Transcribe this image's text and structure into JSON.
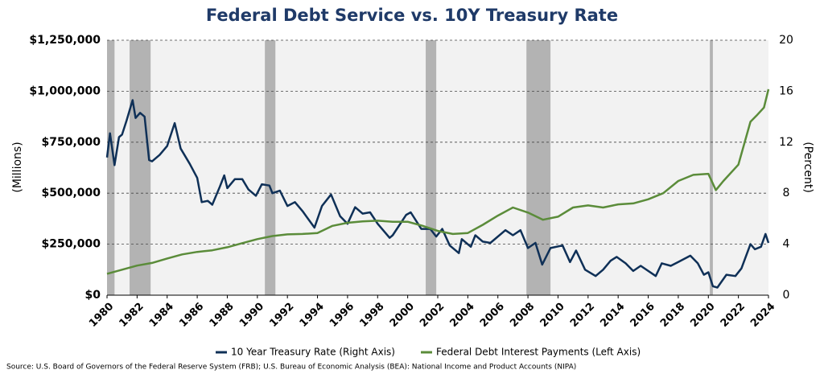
{
  "chart_data": {
    "type": "line",
    "title": "Federal Debt Service vs. 10Y Treasury Rate",
    "y_label": "(Millions)",
    "y2_label": "(Percent)",
    "source": "Source: U.S. Board of Governors of the Federal Reserve System (FRB); U.S. Bureau of Economic Analysis (BEA): National Income and Product Accounts (NIPA)",
    "xlim": [
      1980,
      2024
    ],
    "xticks": [
      1980,
      1982,
      1984,
      1986,
      1988,
      1990,
      1992,
      1994,
      1996,
      1998,
      2000,
      2002,
      2004,
      2006,
      2008,
      2010,
      2012,
      2014,
      2016,
      2018,
      2020,
      2022,
      2024
    ],
    "ylim": [
      0,
      1250000
    ],
    "yticks": [
      {
        "value": 0,
        "label": "$0"
      },
      {
        "value": 250000,
        "label": "$250,000"
      },
      {
        "value": 500000,
        "label": "$500,000"
      },
      {
        "value": 750000,
        "label": "$750,000"
      },
      {
        "value": 1000000,
        "label": "$1,000,000"
      },
      {
        "value": 1250000,
        "label": "$1,250,000"
      }
    ],
    "y2lim": [
      0,
      20
    ],
    "y2ticks": [
      0,
      4,
      8,
      12,
      16,
      20
    ],
    "grid": true,
    "legend": "bottom",
    "recessions": [
      [
        1980.0,
        1980.5
      ],
      [
        1981.5,
        1982.9
      ],
      [
        1990.5,
        1991.2
      ],
      [
        2001.2,
        2001.9
      ],
      [
        2007.9,
        2009.5
      ],
      [
        2020.1,
        2020.3
      ]
    ],
    "recession_color": "#b3b3b3",
    "series": [
      {
        "name": "10 Year Treasury Rate (Right Axis)",
        "color": "#0f3057",
        "axis": "y2",
        "x": [
          1980.0,
          1980.2,
          1980.5,
          1980.8,
          1981.0,
          1981.3,
          1981.7,
          1981.9,
          1982.2,
          1982.5,
          1982.8,
          1983.0,
          1983.5,
          1984.0,
          1984.5,
          1984.9,
          1985.5,
          1986.0,
          1986.3,
          1986.7,
          1987.0,
          1987.5,
          1987.8,
          1988.0,
          1988.5,
          1989.0,
          1989.4,
          1989.9,
          1990.3,
          1990.8,
          1991.0,
          1991.5,
          1992.0,
          1992.5,
          1993.0,
          1993.8,
          1994.3,
          1994.9,
          1995.5,
          1996.0,
          1996.5,
          1997.0,
          1997.5,
          1998.0,
          1998.8,
          1999.0,
          1999.9,
          2000.2,
          2000.9,
          2001.5,
          2001.9,
          2002.3,
          2002.8,
          2003.4,
          2003.6,
          2004.2,
          2004.5,
          2005.0,
          2005.5,
          2006.5,
          2007.0,
          2007.5,
          2008.0,
          2008.5,
          2008.95,
          2009.5,
          2010.3,
          2010.8,
          2011.2,
          2011.8,
          2012.5,
          2013.0,
          2013.5,
          2013.9,
          2014.5,
          2015.0,
          2015.5,
          2016.5,
          2016.9,
          2017.5,
          2018.0,
          2018.8,
          2019.3,
          2019.7,
          2020.0,
          2020.3,
          2020.6,
          2021.2,
          2021.8,
          2022.2,
          2022.8,
          2023.1,
          2023.5,
          2023.8,
          2024.0
        ],
        "values": [
          10.8,
          12.7,
          10.2,
          12.4,
          12.6,
          13.7,
          15.3,
          13.9,
          14.3,
          14.0,
          10.6,
          10.5,
          11.0,
          11.7,
          13.5,
          11.5,
          10.3,
          9.2,
          7.3,
          7.4,
          7.1,
          8.5,
          9.4,
          8.4,
          9.1,
          9.1,
          8.3,
          7.8,
          8.7,
          8.6,
          8.0,
          8.2,
          7.0,
          7.3,
          6.6,
          5.3,
          7.0,
          7.9,
          6.2,
          5.6,
          6.9,
          6.4,
          6.5,
          5.6,
          4.5,
          4.7,
          6.3,
          6.5,
          5.2,
          5.2,
          4.6,
          5.2,
          3.9,
          3.3,
          4.4,
          3.8,
          4.7,
          4.2,
          4.1,
          5.1,
          4.7,
          5.1,
          3.7,
          4.1,
          2.4,
          3.7,
          3.9,
          2.6,
          3.5,
          2.0,
          1.5,
          2.0,
          2.7,
          3.0,
          2.5,
          1.9,
          2.3,
          1.5,
          2.5,
          2.3,
          2.6,
          3.1,
          2.5,
          1.6,
          1.8,
          0.7,
          0.6,
          1.6,
          1.5,
          2.1,
          4.0,
          3.6,
          3.8,
          4.8,
          4.1
        ]
      },
      {
        "name": "Federal Debt Interest Payments (Left Axis)",
        "color": "#5b8c3a",
        "axis": "y",
        "x": [
          1980,
          1981,
          1982,
          1983,
          1984,
          1985,
          1986,
          1987,
          1988,
          1989,
          1990,
          1991,
          1992,
          1993,
          1994,
          1995,
          1996,
          1997,
          1998,
          1999,
          2000,
          2001,
          2002,
          2003,
          2004,
          2005,
          2006,
          2007,
          2008,
          2009,
          2010,
          2011,
          2012,
          2013,
          2014,
          2015,
          2016,
          2017,
          2018,
          2019,
          2020.0,
          2020.5,
          2021,
          2022,
          2022.8,
          2023.2,
          2023.7,
          2024
        ],
        "values": [
          105000,
          125000,
          145000,
          158000,
          180000,
          200000,
          212000,
          220000,
          235000,
          255000,
          275000,
          290000,
          298000,
          300000,
          305000,
          340000,
          355000,
          362000,
          365000,
          360000,
          360000,
          340000,
          315000,
          300000,
          305000,
          345000,
          390000,
          430000,
          405000,
          370000,
          385000,
          430000,
          440000,
          430000,
          445000,
          450000,
          470000,
          500000,
          560000,
          590000,
          595000,
          515000,
          560000,
          640000,
          850000,
          880000,
          920000,
          1010000
        ]
      }
    ]
  }
}
